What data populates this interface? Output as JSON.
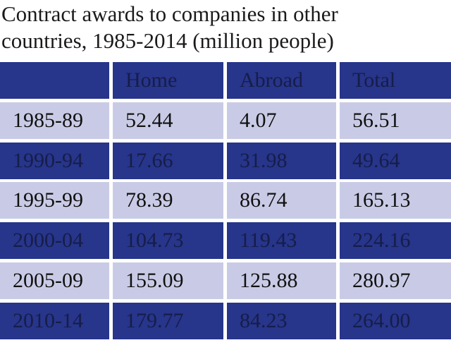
{
  "title": {
    "line1": "Contract awards to companies in other",
    "line2": "countries, 1985-2014 (million people)"
  },
  "table": {
    "columns": [
      "Home",
      "Abroad",
      "Total"
    ],
    "rows": [
      [
        "1985-89",
        "52.44",
        "4.07",
        "56.51"
      ],
      [
        "1990-94",
        "17.66",
        "31.98",
        "49.64"
      ],
      [
        "1995-99",
        "78.39",
        "86.74",
        "165.13"
      ],
      [
        "2000-04",
        "104.73",
        "119.43",
        "224.16"
      ],
      [
        "2005-09",
        "155.09",
        "125.88",
        "280.97"
      ],
      [
        "2010-14",
        "179.77",
        "84.23",
        "264.00"
      ]
    ]
  }
}
